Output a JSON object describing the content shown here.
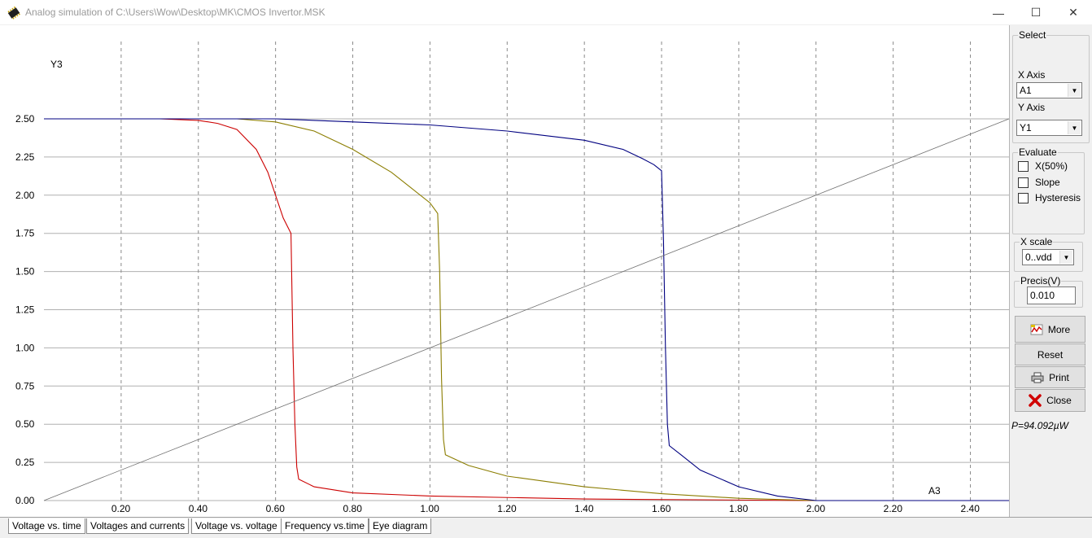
{
  "window": {
    "title": "Analog simulation of C:\\Users\\Wow\\Desktop\\MK\\CMOS Invertor.MSK",
    "min_glyph": "—",
    "max_glyph": "☐",
    "close_glyph": "✕"
  },
  "chart_data": {
    "type": "line",
    "ylabel": "Y3",
    "xlabel": "A3",
    "xlim": [
      0,
      2.5
    ],
    "ylim": [
      0,
      2.5
    ],
    "x_ticks": [
      "0.20",
      "0.40",
      "0.60",
      "0.80",
      "1.00",
      "1.20",
      "1.40",
      "1.60",
      "1.80",
      "2.00",
      "2.20",
      "2.40"
    ],
    "y_ticks": [
      "0.00",
      "0.25",
      "0.50",
      "0.75",
      "1.00",
      "1.25",
      "1.50",
      "1.75",
      "2.00",
      "2.25",
      "2.50"
    ],
    "grid": true,
    "series": [
      {
        "color": "#cc0000",
        "x": [
          0,
          0.3,
          0.4,
          0.45,
          0.5,
          0.55,
          0.58,
          0.6,
          0.62,
          0.64,
          0.645,
          0.65,
          0.655,
          0.66,
          0.7,
          0.8,
          1.0,
          1.4,
          2.0,
          2.5
        ],
        "y": [
          2.5,
          2.5,
          2.49,
          2.47,
          2.43,
          2.3,
          2.15,
          2.0,
          1.85,
          1.75,
          1.0,
          0.5,
          0.22,
          0.14,
          0.09,
          0.05,
          0.03,
          0.01,
          0.0,
          0.0
        ]
      },
      {
        "color": "#8b7d00",
        "x": [
          0,
          0.5,
          0.6,
          0.7,
          0.8,
          0.9,
          0.95,
          1.0,
          1.02,
          1.025,
          1.03,
          1.035,
          1.04,
          1.1,
          1.2,
          1.4,
          1.6,
          1.8,
          2.0,
          2.5
        ],
        "y": [
          2.5,
          2.5,
          2.48,
          2.42,
          2.3,
          2.15,
          2.05,
          1.95,
          1.88,
          1.5,
          0.8,
          0.4,
          0.3,
          0.23,
          0.16,
          0.09,
          0.045,
          0.015,
          0.0,
          0.0
        ]
      },
      {
        "color": "#000080",
        "x": [
          0,
          0.6,
          0.8,
          1.0,
          1.2,
          1.4,
          1.5,
          1.55,
          1.58,
          1.6,
          1.605,
          1.61,
          1.615,
          1.62,
          1.65,
          1.7,
          1.8,
          1.9,
          2.0,
          2.5
        ],
        "y": [
          2.5,
          2.5,
          2.48,
          2.46,
          2.42,
          2.36,
          2.3,
          2.24,
          2.2,
          2.16,
          1.7,
          1.0,
          0.5,
          0.36,
          0.3,
          0.2,
          0.09,
          0.03,
          0.0,
          0.0
        ]
      },
      {
        "color": "#707070",
        "x": [
          0,
          2.5
        ],
        "y": [
          0,
          2.5
        ]
      }
    ]
  },
  "panel": {
    "select_legend": "Select",
    "x_axis_label": "X Axis",
    "x_axis_value": "A1",
    "y_axis_label": "Y Axis",
    "y_axis_value": "Y1",
    "evaluate_legend": "Evaluate",
    "evaluate_options": [
      "X(50%)",
      "Slope",
      "Hysteresis"
    ],
    "xscale_legend": "X scale",
    "xscale_value": "0..vdd",
    "precis_legend": "Precis(V)",
    "precis_value": "0.010",
    "more_label": "More",
    "reset_label": "Reset",
    "print_label": "Print",
    "close_label": "Close",
    "power": "P=94.092µW"
  },
  "tabs": [
    "Voltage vs. time",
    "Voltages and currents",
    "Voltage vs. voltage",
    "Frequency vs.time",
    "Eye diagram"
  ]
}
